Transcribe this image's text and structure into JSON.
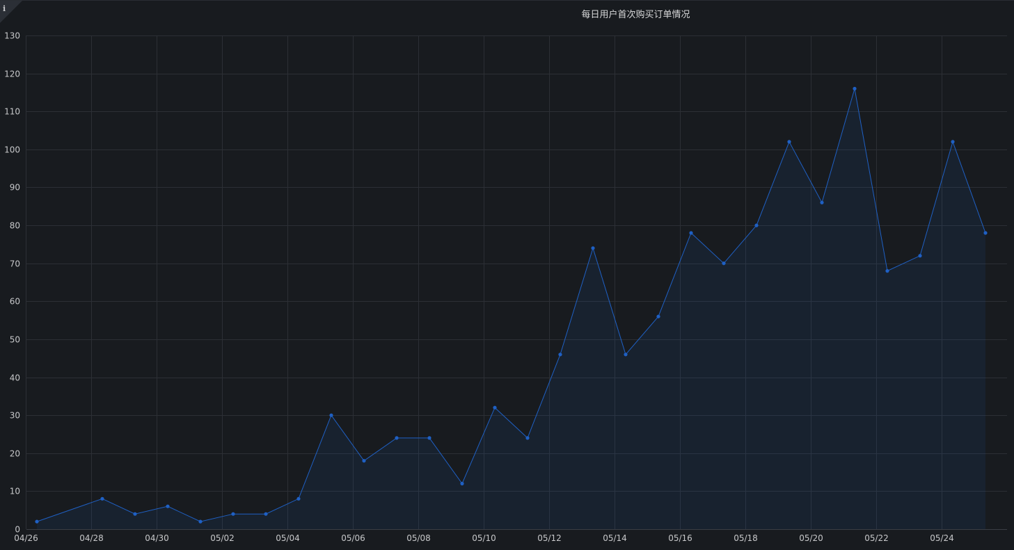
{
  "panel": {
    "title": "每日用户首次购买订单情况",
    "info_icon": "info-icon",
    "info_glyph": "i"
  },
  "colors": {
    "background": "#181b1f",
    "line": "#1f60c4",
    "fill": "#1f60c4",
    "grid": "#2c2f35",
    "text": "#c7c8ca"
  },
  "chart_data": {
    "type": "area",
    "title": "每日用户首次购买订单情况",
    "xlabel": "",
    "ylabel": "",
    "ylim": [
      0,
      130
    ],
    "yticks": [
      0,
      10,
      20,
      30,
      40,
      50,
      60,
      70,
      80,
      90,
      100,
      110,
      120,
      130
    ],
    "xticks": [
      "04/26",
      "04/28",
      "04/30",
      "05/02",
      "05/04",
      "05/06",
      "05/08",
      "05/10",
      "05/12",
      "05/14",
      "05/16",
      "05/18",
      "05/20",
      "05/22",
      "05/24"
    ],
    "grid": true,
    "legend": "none",
    "series": [
      {
        "x": [
          "04/26",
          "04/28",
          "04/29",
          "04/30",
          "05/01",
          "05/02",
          "05/03",
          "05/04",
          "05/05",
          "05/06",
          "05/07",
          "05/08",
          "05/09",
          "05/10",
          "05/11",
          "05/12",
          "05/13",
          "05/14",
          "05/15",
          "05/16",
          "05/17",
          "05/18",
          "05/19",
          "05/20",
          "05/21",
          "05/22",
          "05/23",
          "05/24",
          "05/25"
        ],
        "values": [
          2,
          8,
          4,
          6,
          2,
          4,
          4,
          8,
          30,
          18,
          24,
          24,
          12,
          32,
          24,
          46,
          74,
          46,
          56,
          78,
          70,
          80,
          102,
          86,
          116,
          68,
          72,
          102,
          78
        ]
      }
    ]
  }
}
